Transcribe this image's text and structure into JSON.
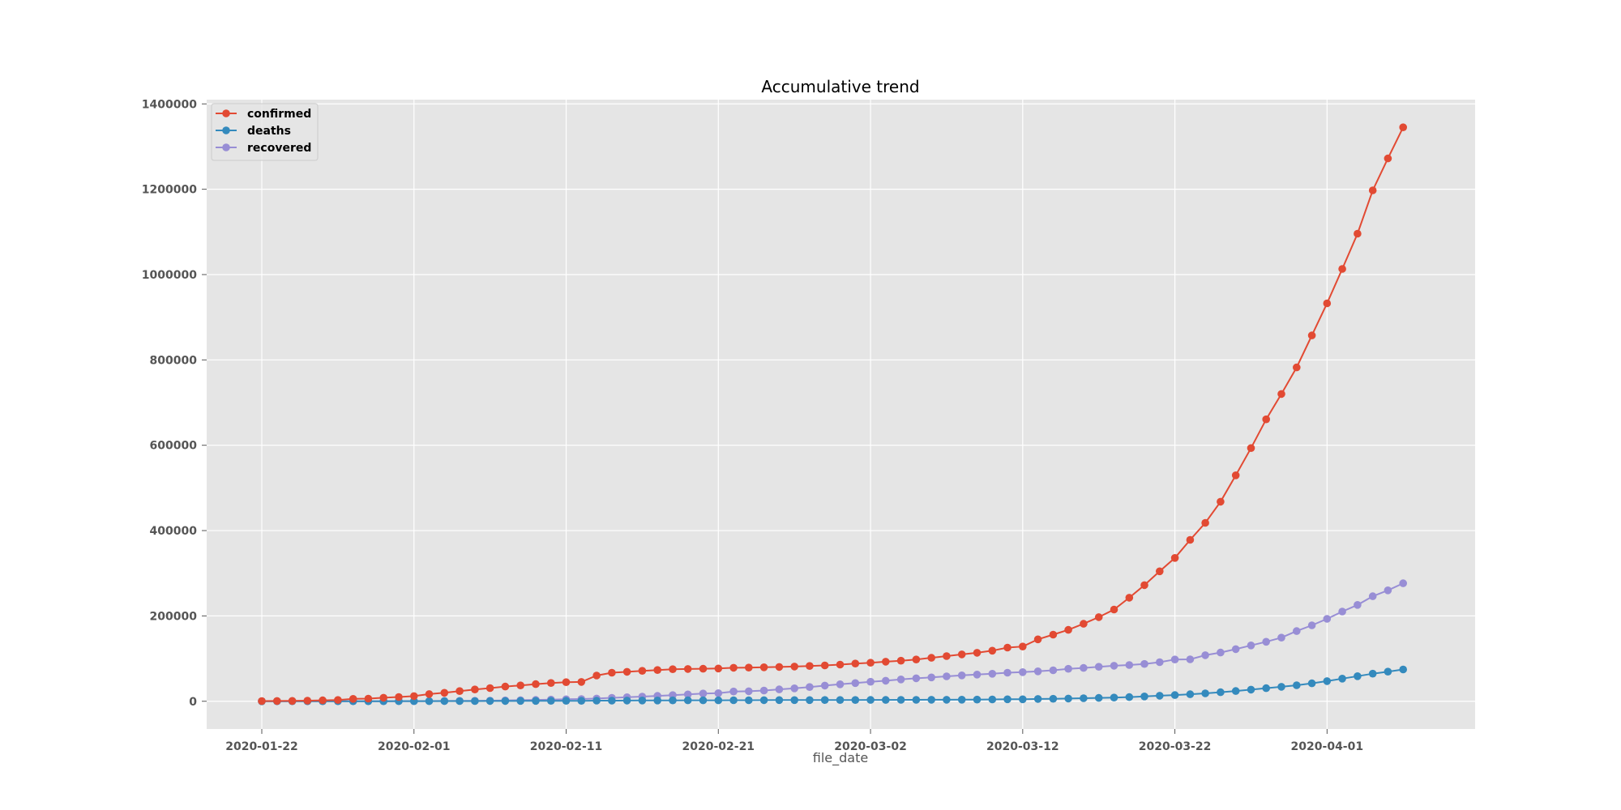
{
  "chart_data": {
    "type": "line",
    "title": "Accumulative trend",
    "xlabel": "file_date",
    "ylabel": "",
    "x_start": "2020-01-22",
    "x_end": "2020-04-07",
    "x_ticks": [
      "2020-01-22",
      "2020-02-01",
      "2020-02-11",
      "2020-02-21",
      "2020-03-02",
      "2020-03-12",
      "2020-03-22",
      "2020-04-01"
    ],
    "ylim": [
      -65000,
      1410000
    ],
    "y_ticks": [
      0,
      200000,
      400000,
      600000,
      800000,
      1000000,
      1200000,
      1400000
    ],
    "y_tick_labels": [
      "0",
      "200000",
      "400000",
      "600000",
      "800000",
      "1000000",
      "1200000",
      "1400000"
    ],
    "grid": true,
    "legend_position": "top-left",
    "markers": "circle",
    "series": [
      {
        "name": "confirmed",
        "color": "#E24A33",
        "values": [
          555,
          653,
          941,
          1434,
          2118,
          2927,
          5578,
          6166,
          8234,
          9927,
          12038,
          16787,
          19881,
          23892,
          27635,
          30794,
          34391,
          37120,
          40150,
          42762,
          44802,
          45221,
          60368,
          66885,
          69030,
          71224,
          73258,
          75136,
          75639,
          76197,
          76819,
          78572,
          78958,
          79561,
          80406,
          81388,
          82746,
          84112,
          86011,
          88369,
          90306,
          92840,
          95120,
          97886,
          101801,
          105847,
          109821,
          113590,
          118620,
          125875,
          128343,
          145193,
          156097,
          167449,
          181546,
          197142,
          214910,
          242708,
          272166,
          304524,
          335955,
          378287,
          418041,
          467653,
          529591,
          593291,
          660706,
          720117,
          782365,
          857487,
          932605,
          1013157,
          1095917,
          1197405,
          1272115,
          1345101
        ]
      },
      {
        "name": "deaths",
        "color": "#348ABD",
        "values": [
          17,
          18,
          26,
          42,
          56,
          82,
          131,
          133,
          171,
          213,
          259,
          362,
          426,
          492,
          564,
          634,
          719,
          806,
          906,
          1013,
          1113,
          1118,
          1371,
          1523,
          1666,
          1770,
          1868,
          2007,
          2122,
          2247,
          2251,
          2458,
          2469,
          2629,
          2708,
          2770,
          2814,
          2872,
          2941,
          2996,
          3085,
          3160,
          3254,
          3348,
          3460,
          3558,
          3802,
          3988,
          4262,
          4615,
          4720,
          5404,
          5819,
          6440,
          7126,
          7905,
          8733,
          9867,
          11299,
          12973,
          14623,
          16497,
          18615,
          21181,
          23970,
          27198,
          30652,
          33925,
          37582,
          42107,
          47180,
          52983,
          58787,
          64606,
          69374,
          74565
        ]
      },
      {
        "name": "recovered",
        "color": "#988ED5",
        "values": [
          28,
          30,
          36,
          39,
          52,
          61,
          107,
          126,
          143,
          222,
          284,
          472,
          623,
          852,
          1124,
          1487,
          2011,
          2616,
          3244,
          3946,
          4683,
          5150,
          6295,
          8058,
          9395,
          10865,
          12583,
          14352,
          16121,
          18177,
          18890,
          22886,
          23394,
          25227,
          27905,
          30384,
          33277,
          36711,
          39782,
          42716,
          45602,
          48228,
          51170,
          53796,
          55865,
          58358,
          60694,
          62494,
          64404,
          67003,
          68324,
          70251,
          72624,
          76034,
          78088,
          80840,
          83207,
          84962,
          87403,
          91676,
          97882,
          98351,
          108000,
          114218,
          122150,
          130915,
          139415,
          149082,
          164566,
          178034,
          193177,
          210263,
          225796,
          246152,
          260012,
          276515
        ]
      }
    ]
  }
}
